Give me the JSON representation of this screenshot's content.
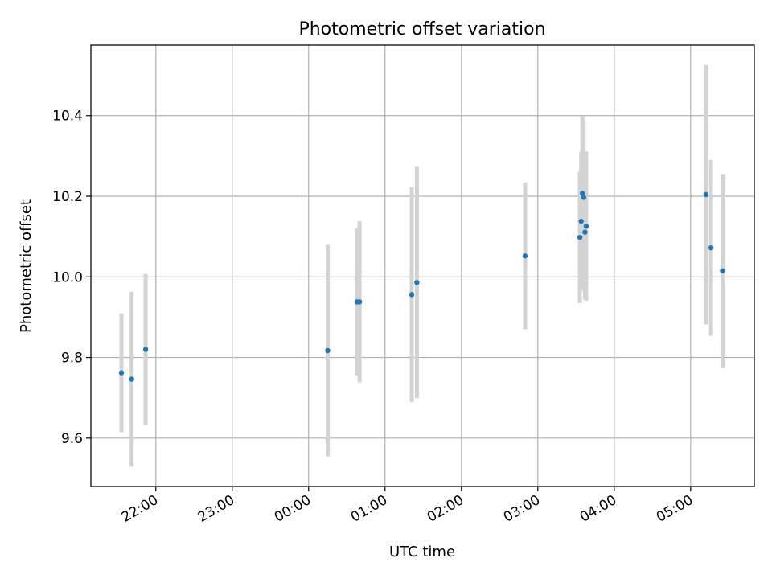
{
  "chart_data": {
    "type": "scatter",
    "title": "Photometric offset variation",
    "xlabel": "UTC time",
    "ylabel": "Photometric offset",
    "xlim": [
      "2000-01-01T21:09",
      "2000-01-02T05:50"
    ],
    "ylim": [
      9.48,
      10.575
    ],
    "grid": true,
    "xticks": [
      {
        "label": "22:00",
        "value": "2000-01-01T22:00"
      },
      {
        "label": "23:00",
        "value": "2000-01-01T23:00"
      },
      {
        "label": "00:00",
        "value": "2000-01-02T00:00"
      },
      {
        "label": "01:00",
        "value": "2000-01-02T01:00"
      },
      {
        "label": "02:00",
        "value": "2000-01-02T02:00"
      },
      {
        "label": "03:00",
        "value": "2000-01-02T03:00"
      },
      {
        "label": "04:00",
        "value": "2000-01-02T04:00"
      },
      {
        "label": "05:00",
        "value": "2000-01-02T05:00"
      }
    ],
    "yticks": [
      9.6,
      9.8,
      10.0,
      10.2,
      10.4
    ],
    "point_color": "#1f77b4",
    "errorbar_color": "#d3d3d3",
    "points": [
      {
        "x": "2000-01-01T21:33",
        "y": 9.762,
        "yerr": 0.147
      },
      {
        "x": "2000-01-01T21:41",
        "y": 9.746,
        "yerr": 0.217
      },
      {
        "x": "2000-01-01T21:52",
        "y": 9.82,
        "yerr": 0.187
      },
      {
        "x": "2000-01-02T00:15",
        "y": 9.817,
        "yerr": 0.262
      },
      {
        "x": "2000-01-02T00:38",
        "y": 9.938,
        "yerr": 0.182
      },
      {
        "x": "2000-01-02T00:40",
        "y": 9.938,
        "yerr": 0.2
      },
      {
        "x": "2000-01-02T01:21",
        "y": 9.956,
        "yerr": 0.267
      },
      {
        "x": "2000-01-02T01:25",
        "y": 9.986,
        "yerr": 0.287
      },
      {
        "x": "2000-01-02T02:50",
        "y": 10.052,
        "yerr": 0.182
      },
      {
        "x": "2000-01-02T03:33",
        "y": 10.098,
        "yerr": 0.163
      },
      {
        "x": "2000-01-02T03:34",
        "y": 10.138,
        "yerr": 0.172
      },
      {
        "x": "2000-01-02T03:35",
        "y": 10.207,
        "yerr": 0.192
      },
      {
        "x": "2000-01-02T03:36",
        "y": 10.197,
        "yerr": 0.19
      },
      {
        "x": "2000-01-02T03:37",
        "y": 10.111,
        "yerr": 0.167
      },
      {
        "x": "2000-01-02T03:38",
        "y": 10.126,
        "yerr": 0.185
      },
      {
        "x": "2000-01-02T05:12",
        "y": 10.204,
        "yerr": 0.322
      },
      {
        "x": "2000-01-02T05:16",
        "y": 10.072,
        "yerr": 0.218
      },
      {
        "x": "2000-01-02T05:25",
        "y": 10.015,
        "yerr": 0.24
      }
    ]
  }
}
